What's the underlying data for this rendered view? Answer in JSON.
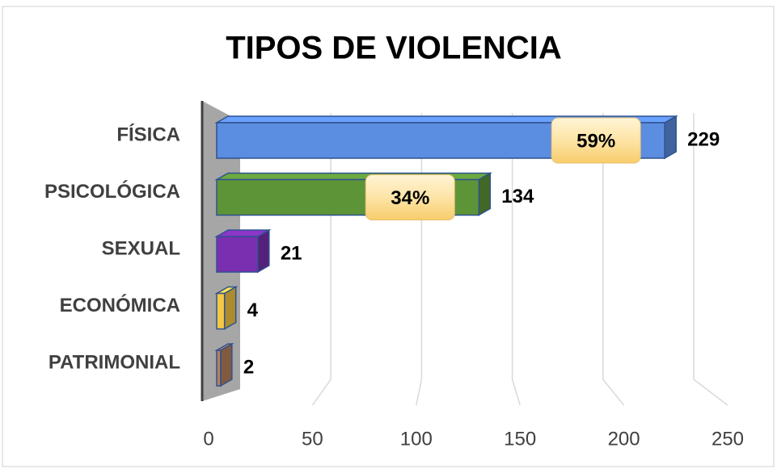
{
  "chart_data": {
    "type": "bar3d",
    "orientation": "horizontal",
    "title": "TIPOS DE VIOLENCIA",
    "categories": [
      "FÍSICA",
      "PSICOLÓGICA",
      "SEXUAL",
      "ECONÓMICA",
      "PATRIMONIAL"
    ],
    "values": [
      229,
      134,
      21,
      4,
      2
    ],
    "colors": [
      "#5b8de0",
      "#5e9438",
      "#7a2fb0",
      "#f5c842",
      "#b8805a"
    ],
    "percentages": [
      59,
      34,
      null,
      null,
      null
    ],
    "percentage_labels": [
      "59%",
      "34%",
      null,
      null,
      null
    ],
    "xlim": [
      0,
      250
    ],
    "xticks": [
      0,
      50,
      100,
      150,
      200,
      250
    ],
    "grid": true
  }
}
